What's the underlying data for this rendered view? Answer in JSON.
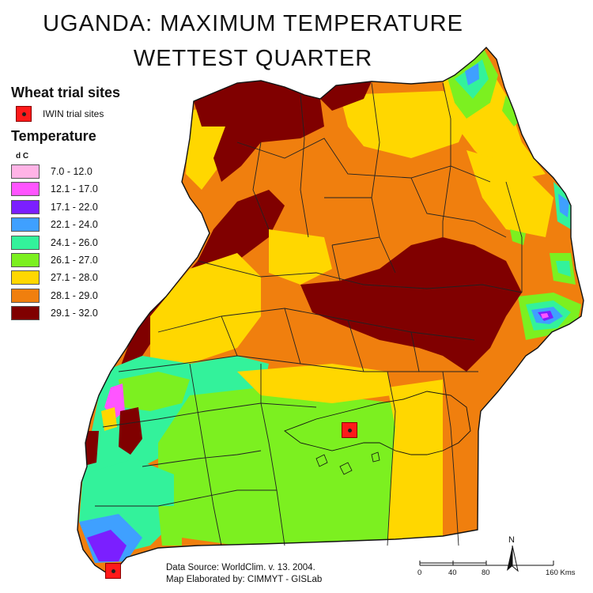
{
  "title": {
    "line1": "UGANDA:  MAXIMUM TEMPERATURE",
    "line2": "WETTEST QUARTER"
  },
  "legend": {
    "sites_heading": "Wheat trial sites",
    "site_label": "IWIN trial sites",
    "temp_heading": "Temperature",
    "unit": "d C",
    "classes": [
      {
        "label": "7.0 - 12.0",
        "color": "#ffb3e6"
      },
      {
        "label": "12.1 - 17.0",
        "color": "#ff55ff"
      },
      {
        "label": "17.1 - 22.0",
        "color": "#7b1fff"
      },
      {
        "label": "22.1 - 24.0",
        "color": "#3fa0ff"
      },
      {
        "label": "24.1 - 26.0",
        "color": "#33f29b"
      },
      {
        "label": "26.1 - 27.0",
        "color": "#7cf020"
      },
      {
        "label": "27.1 - 28.0",
        "color": "#ffd700"
      },
      {
        "label": "28.1 - 29.0",
        "color": "#f07f0e"
      },
      {
        "label": "29.1 - 32.0",
        "color": "#800000"
      }
    ]
  },
  "source": {
    "line1": "Data Source: WorldClim. v. 13.  2004.",
    "line2": "Map Elaborated by: CIMMYT - GISLab"
  },
  "north": {
    "label": "N"
  },
  "scale": {
    "ticks": [
      "0",
      "40",
      "80",
      "160 Kms"
    ]
  }
}
